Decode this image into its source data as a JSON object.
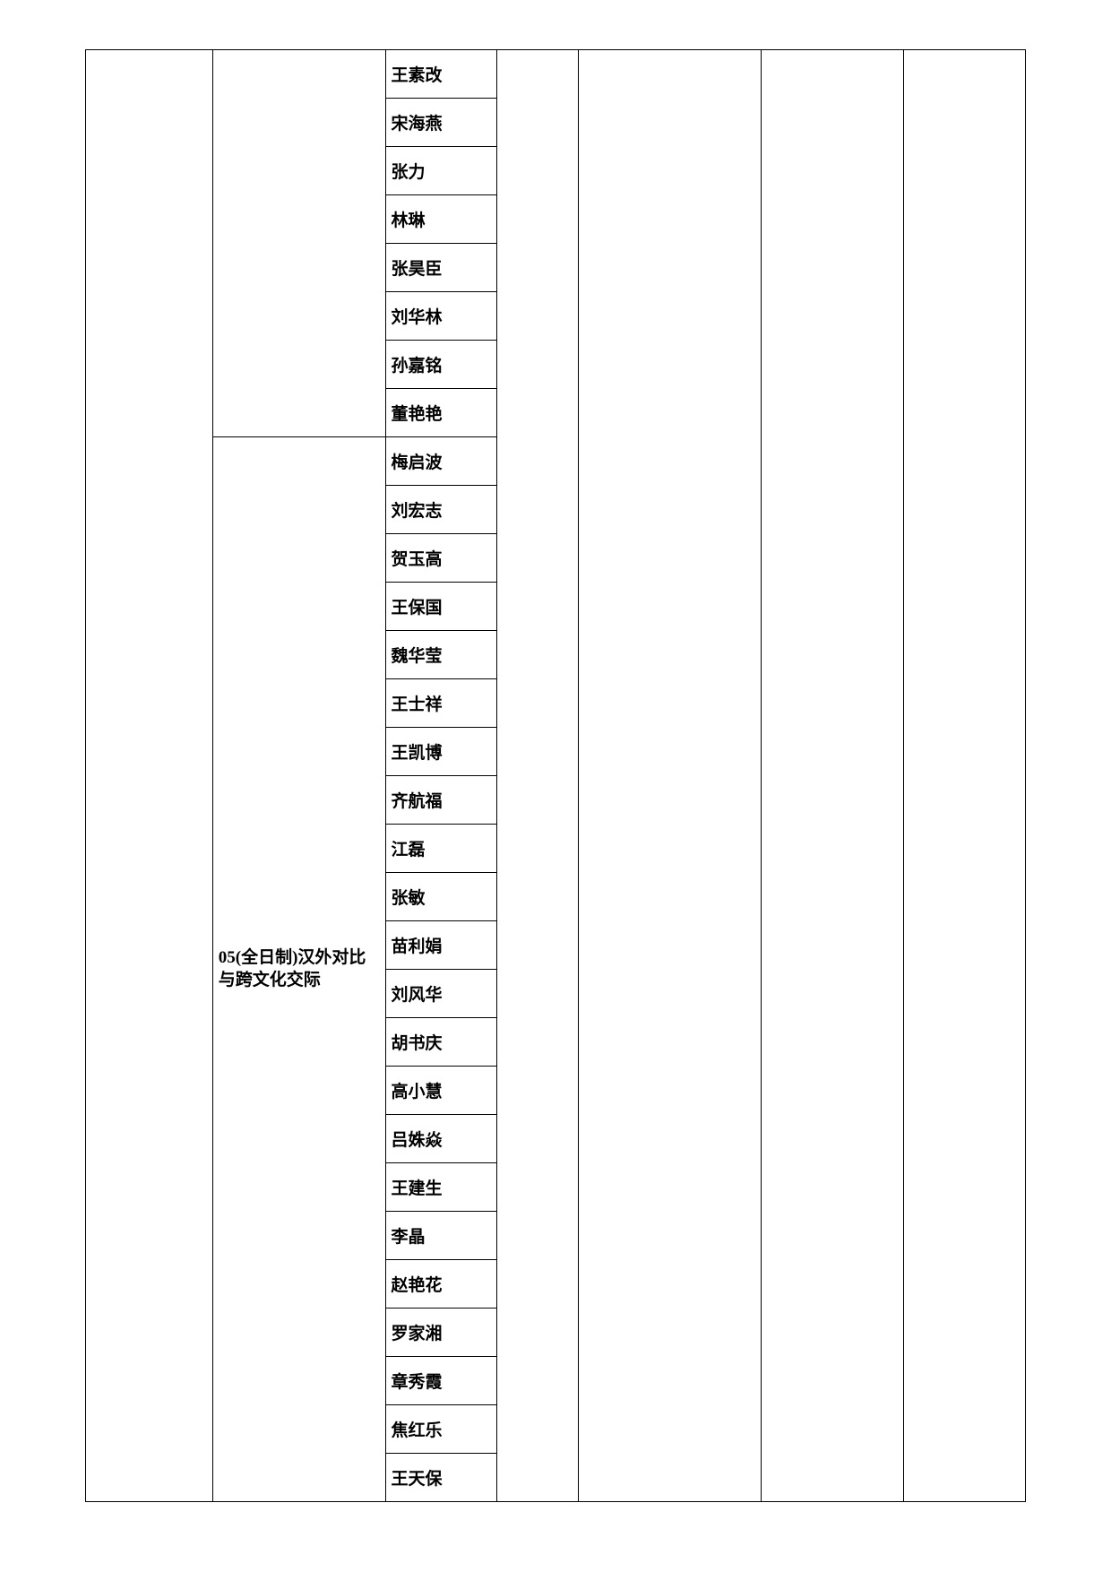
{
  "table": {
    "col2_label_group2": "05(全日制)汉外对比与跨文化交际",
    "group1_names": [
      "王素改",
      "宋海燕",
      "张力",
      "林琳",
      "张昊臣",
      "刘华林",
      "孙嘉铭",
      "董艳艳"
    ],
    "group2_names": [
      "梅启波",
      "刘宏志",
      "贺玉高",
      "王保国",
      "魏华莹",
      "王士祥",
      "王凯博",
      "齐航福",
      "江磊",
      "张敏",
      "苗利娟",
      "刘风华",
      "胡书庆",
      "高小慧",
      "吕姝焱",
      "王建生",
      "李晶",
      "赵艳花",
      "罗家湘",
      "章秀霞",
      "焦红乐",
      "王天保"
    ]
  }
}
